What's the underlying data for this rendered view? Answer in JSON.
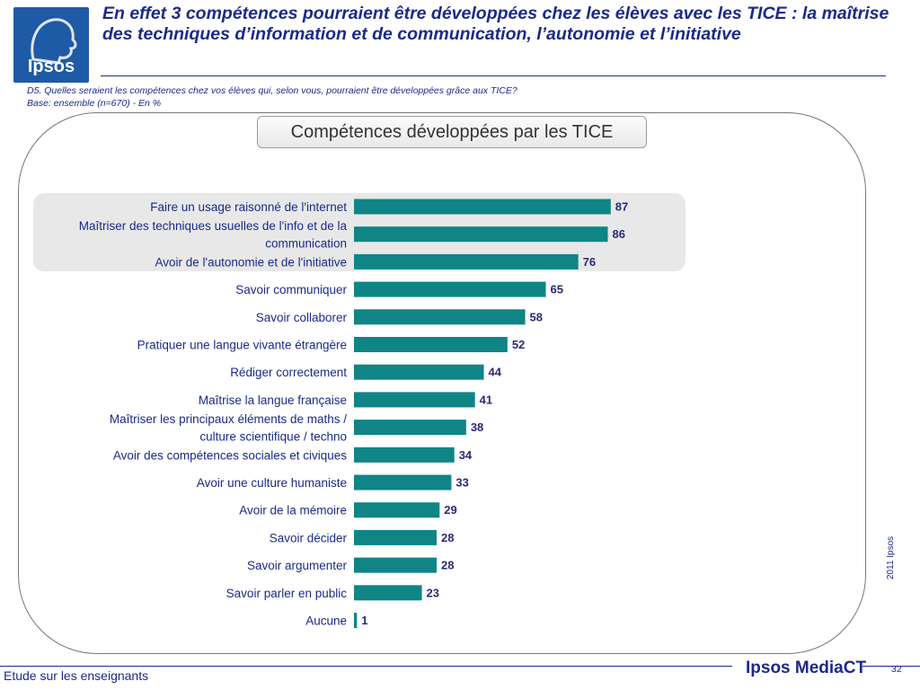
{
  "logo": {
    "text": "Ipsos"
  },
  "title": "En effet 3 compétences pourraient être développées chez les élèves avec les TICE : la maîtrise des techniques d’information et de communication, l’autonomie et l’initiative",
  "question": "D5. Quelles seraient les compétences chez vos élèves qui, selon vous, pourraient être développées grâce aux TICE?",
  "base": "Base: ensemble (n=670) - En %",
  "side_note": "2011 Ipsos",
  "footer": {
    "left": "Etude sur les enseignants",
    "brand": "Ipsos MediaCT",
    "page": "32"
  },
  "chart_data": {
    "type": "bar",
    "orientation": "horizontal",
    "title": "Compétences développées par les TICE",
    "categories": [
      "Faire un usage raisonné de l'internet",
      "Maîtriser des techniques usuelles de l'info et de la communication",
      "Avoir de l'autonomie et de l'initiative",
      "Savoir communiquer",
      "Savoir collaborer",
      "Pratiquer une langue vivante étrangère",
      "Rédiger correctement",
      "Maîtrise la langue française",
      "Maîtriser les principaux éléments de maths / culture scientifique / techno",
      "Avoir des compétences sociales et civiques",
      "Avoir une culture humaniste",
      "Avoir de la mémoire",
      "Savoir décider",
      "Savoir argumenter",
      "Savoir parler en public",
      "Aucune"
    ],
    "label_lines": [
      [
        "Faire un usage raisonné de l'internet"
      ],
      [
        "Maîtriser des techniques usuelles de l'info et de la",
        "communication"
      ],
      [
        "Avoir de l'autonomie et de l'initiative"
      ],
      [
        "Savoir communiquer"
      ],
      [
        "Savoir collaborer"
      ],
      [
        "Pratiquer une langue vivante étrangère"
      ],
      [
        "Rédiger correctement"
      ],
      [
        "Maîtrise la langue française"
      ],
      [
        "Maîtriser les principaux éléments de maths /",
        "culture scientifique / techno"
      ],
      [
        "Avoir des compétences sociales et civiques"
      ],
      [
        "Avoir une culture humaniste"
      ],
      [
        "Avoir de la mémoire"
      ],
      [
        "Savoir décider"
      ],
      [
        "Savoir argumenter"
      ],
      [
        "Savoir parler en public"
      ],
      [
        "Aucune"
      ]
    ],
    "values": [
      87,
      86,
      76,
      65,
      58,
      52,
      44,
      41,
      38,
      34,
      33,
      29,
      28,
      28,
      23,
      1
    ],
    "highlighted": [
      0,
      1,
      2
    ],
    "xlim": [
      0,
      100
    ],
    "bar_color": "#0f8585",
    "label_color": "#1a2a8a",
    "value_color": "#2a2a7a"
  }
}
